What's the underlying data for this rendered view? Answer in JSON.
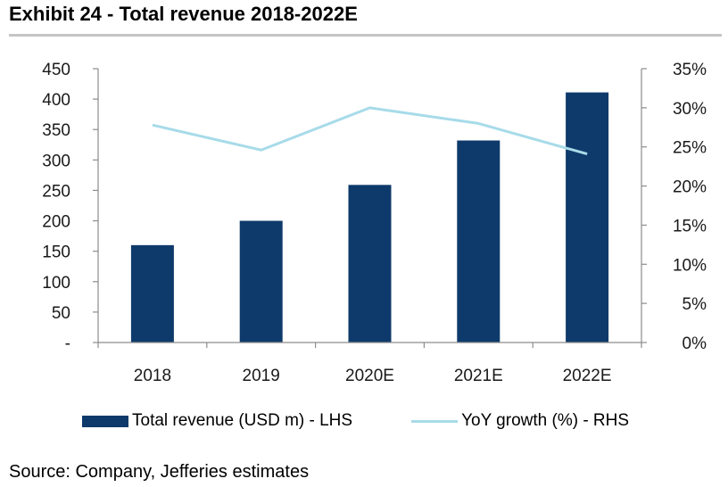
{
  "title": "Exhibit 24 - Total revenue 2018-2022E",
  "source": "Source: Company, Jefferies estimates",
  "colors": {
    "bar": "#0e3a6b",
    "line": "#a7dbe9",
    "axis": "#8c8c8c",
    "rule": "#c4c4c4"
  },
  "chart_data": {
    "type": "bar+line",
    "title": "Exhibit 24 - Total revenue 2018-2022E",
    "categories": [
      "2018",
      "2019",
      "2020E",
      "2021E",
      "2022E"
    ],
    "series": [
      {
        "name": "Total revenue (USD m) - LHS",
        "type": "bar",
        "axis": "left",
        "values": [
          160,
          200,
          259,
          332,
          411
        ]
      },
      {
        "name": "YoY growth (%) - RHS",
        "type": "line",
        "axis": "right",
        "values": [
          27.8,
          24.6,
          30.0,
          28.0,
          24.1
        ]
      }
    ],
    "left_axis": {
      "min": 0,
      "max": 450,
      "ticks": [
        "-",
        "50",
        "100",
        "150",
        "200",
        "250",
        "300",
        "350",
        "400",
        "450"
      ],
      "tick_values": [
        0,
        50,
        100,
        150,
        200,
        250,
        300,
        350,
        400,
        450
      ]
    },
    "right_axis": {
      "min": 0,
      "max": 35,
      "ticks": [
        "0%",
        "5%",
        "10%",
        "15%",
        "20%",
        "25%",
        "30%",
        "35%"
      ],
      "tick_values": [
        0,
        5,
        10,
        15,
        20,
        25,
        30,
        35
      ]
    },
    "legend": [
      "Total revenue (USD m) - LHS",
      "YoY growth (%) - RHS"
    ],
    "legend_position": "bottom",
    "grid": false
  }
}
